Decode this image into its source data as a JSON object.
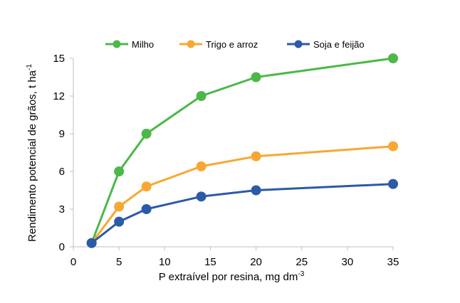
{
  "chart_data": {
    "type": "line",
    "title": "",
    "xlabel": {
      "main": "P extraível por resina, mg dm",
      "sup": "-3"
    },
    "ylabel": {
      "main": "Rendimento potencial de grãos, t ha",
      "sup": "-1"
    },
    "xlim": [
      0,
      35
    ],
    "ylim": [
      0,
      15
    ],
    "xticks": [
      0,
      5,
      10,
      15,
      20,
      25,
      30,
      35
    ],
    "yticks": [
      0,
      3,
      6,
      9,
      12,
      15
    ],
    "grid": false,
    "legend_position": "top",
    "x": [
      2,
      5,
      8,
      14,
      20,
      35
    ],
    "series": [
      {
        "name": "Milho",
        "color": "#4cb848",
        "values": [
          0.3,
          6.0,
          9.0,
          12.0,
          13.5,
          15.0
        ]
      },
      {
        "name": "Trigo e arroz",
        "color": "#f8a732",
        "values": [
          0.3,
          3.2,
          4.8,
          6.4,
          7.2,
          8.0
        ]
      },
      {
        "name": "Soja e feijão",
        "color": "#2b5aa8",
        "values": [
          0.3,
          2.0,
          3.0,
          4.0,
          4.5,
          5.0
        ]
      }
    ]
  }
}
